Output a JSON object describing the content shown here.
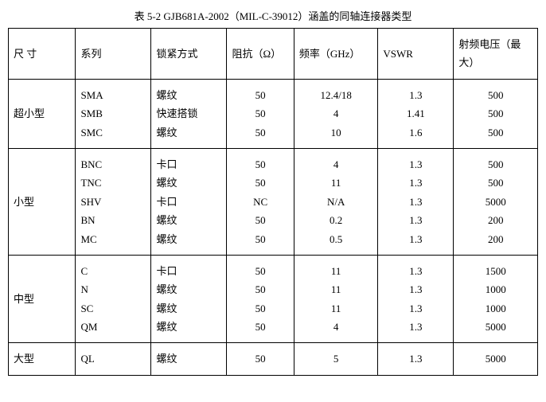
{
  "title": "表 5-2 GJB681A-2002（MIL-C-39012）涵盖的同轴连接器类型",
  "headers": {
    "size": "尺  寸",
    "series": "系列",
    "lock": "锁紧方式",
    "impedance": "阻抗（Ω）",
    "freq": "频率（GHz）",
    "vswr": "VSWR",
    "volt": "射频电压（最大）"
  },
  "groups": [
    {
      "size": "超小型",
      "rows": [
        {
          "series": "SMA",
          "lock": "螺纹",
          "imp": "50",
          "freq": "12.4/18",
          "vswr": "1.3",
          "volt": "500"
        },
        {
          "series": "SMB",
          "lock": "快速搭锁",
          "imp": "50",
          "freq": "4",
          "vswr": "1.41",
          "volt": "500"
        },
        {
          "series": "SMC",
          "lock": "螺纹",
          "imp": "50",
          "freq": "10",
          "vswr": "1.6",
          "volt": "500"
        }
      ]
    },
    {
      "size": "小型",
      "rows": [
        {
          "series": "BNC",
          "lock": "卡口",
          "imp": "50",
          "freq": "4",
          "vswr": "1.3",
          "volt": "500"
        },
        {
          "series": "TNC",
          "lock": "螺纹",
          "imp": "50",
          "freq": "11",
          "vswr": "1.3",
          "volt": "500"
        },
        {
          "series": "SHV",
          "lock": "卡口",
          "imp": "NC",
          "freq": "N/A",
          "vswr": "1.3",
          "volt": "5000"
        },
        {
          "series": "BN",
          "lock": "螺纹",
          "imp": "50",
          "freq": "0.2",
          "vswr": "1.3",
          "volt": "200"
        },
        {
          "series": "MC",
          "lock": "螺纹",
          "imp": "50",
          "freq": "0.5",
          "vswr": "1.3",
          "volt": "200"
        }
      ]
    },
    {
      "size": "中型",
      "rows": [
        {
          "series": "C",
          "lock": "卡口",
          "imp": "50",
          "freq": "11",
          "vswr": "1.3",
          "volt": "1500"
        },
        {
          "series": "N",
          "lock": "螺纹",
          "imp": "50",
          "freq": "11",
          "vswr": "1.3",
          "volt": "1000"
        },
        {
          "series": "SC",
          "lock": "螺纹",
          "imp": "50",
          "freq": "11",
          "vswr": "1.3",
          "volt": "1000"
        },
        {
          "series": "QM",
          "lock": "螺纹",
          "imp": "50",
          "freq": "4",
          "vswr": "1.3",
          "volt": "5000"
        }
      ]
    },
    {
      "size": "大型",
      "rows": [
        {
          "series": "QL",
          "lock": "螺纹",
          "imp": "50",
          "freq": "5",
          "vswr": "1.3",
          "volt": "5000"
        }
      ]
    }
  ]
}
